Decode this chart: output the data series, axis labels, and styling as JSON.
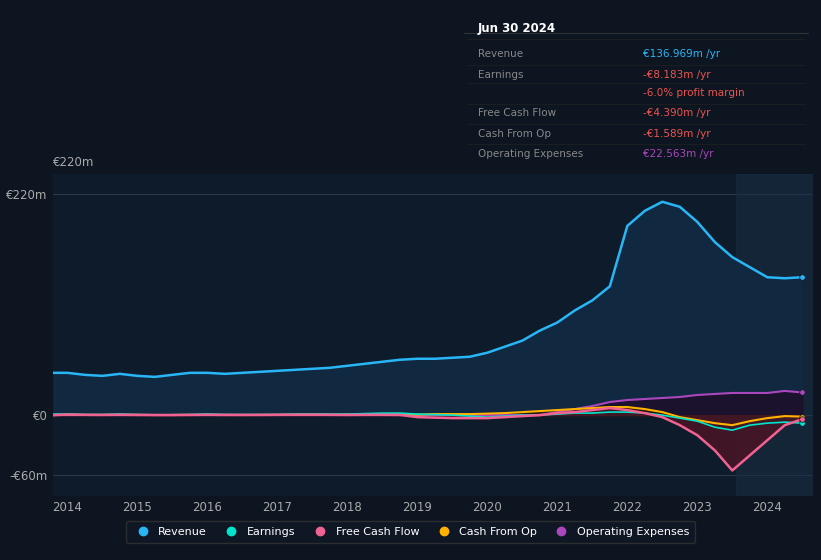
{
  "background_color": "#0c1520",
  "plot_bg_color": "#0d1b2a",
  "title_box": {
    "date": "Jun 30 2024",
    "rows": [
      {
        "label": "Revenue",
        "value": "€136.969m /yr",
        "label_color": "#888888",
        "value_color": "#29b6f6"
      },
      {
        "label": "Earnings",
        "value": "-€8.183m /yr",
        "label_color": "#888888",
        "value_color": "#ef5350"
      },
      {
        "label": "",
        "value": "-6.0% profit margin",
        "label_color": "#888888",
        "value_color": "#ef5350"
      },
      {
        "label": "Free Cash Flow",
        "value": "-€4.390m /yr",
        "label_color": "#888888",
        "value_color": "#ef5350"
      },
      {
        "label": "Cash From Op",
        "value": "-€1.589m /yr",
        "label_color": "#888888",
        "value_color": "#ef5350"
      },
      {
        "label": "Operating Expenses",
        "value": "€22.563m /yr",
        "label_color": "#888888",
        "value_color": "#ab47bc"
      }
    ]
  },
  "years": [
    2013.8,
    2014.0,
    2014.25,
    2014.5,
    2014.75,
    2015.0,
    2015.25,
    2015.5,
    2015.75,
    2016.0,
    2016.25,
    2016.5,
    2016.75,
    2017.0,
    2017.25,
    2017.5,
    2017.75,
    2018.0,
    2018.25,
    2018.5,
    2018.75,
    2019.0,
    2019.25,
    2019.5,
    2019.75,
    2020.0,
    2020.25,
    2020.5,
    2020.75,
    2021.0,
    2021.25,
    2021.5,
    2021.75,
    2022.0,
    2022.25,
    2022.5,
    2022.75,
    2023.0,
    2023.25,
    2023.5,
    2023.75,
    2024.0,
    2024.25,
    2024.5
  ],
  "revenue": [
    42,
    42,
    40,
    39,
    41,
    39,
    38,
    40,
    42,
    42,
    41,
    42,
    43,
    44,
    45,
    46,
    47,
    49,
    51,
    53,
    55,
    56,
    56,
    57,
    58,
    62,
    68,
    74,
    84,
    92,
    104,
    114,
    128,
    188,
    203,
    212,
    207,
    192,
    172,
    157,
    147,
    137,
    136,
    137
  ],
  "earnings": [
    1,
    1,
    0.5,
    0.5,
    1,
    0.5,
    0.2,
    0.3,
    0.5,
    1,
    0.5,
    0.5,
    0.5,
    0.5,
    1,
    1,
    1,
    1,
    1.5,
    2,
    2,
    1,
    0.5,
    0,
    -1,
    -2,
    -1,
    0,
    0,
    1,
    2,
    2,
    3,
    3,
    2,
    0,
    -3,
    -6,
    -12,
    -15,
    -10,
    -8,
    -7,
    -8
  ],
  "free_cash_flow": [
    0,
    0.5,
    0.3,
    0.2,
    0.3,
    0.2,
    0.1,
    0.1,
    0.2,
    0.3,
    0.2,
    0.2,
    0.2,
    0.3,
    0.4,
    0.4,
    0.3,
    0.2,
    0.3,
    0.3,
    0.2,
    -2,
    -2.5,
    -3,
    -3,
    -3,
    -2,
    -1,
    0,
    2,
    3,
    5,
    7,
    5,
    2,
    -2,
    -10,
    -20,
    -35,
    -55,
    -40,
    -25,
    -10,
    -4
  ],
  "cash_from_op": [
    0,
    0.5,
    0.2,
    0.2,
    0.3,
    0.2,
    0.1,
    0.1,
    0.2,
    0.3,
    0.2,
    0.1,
    0.2,
    0.3,
    0.3,
    0.4,
    0.3,
    0.4,
    0.5,
    0.5,
    0.5,
    0.5,
    1,
    1,
    1,
    1.5,
    2,
    3,
    4,
    5,
    6,
    7,
    8,
    8,
    6,
    3,
    -2,
    -5,
    -8,
    -10,
    -6,
    -3,
    -1,
    -1.5
  ],
  "op_expenses": [
    0,
    0,
    0,
    0,
    0,
    0,
    0,
    0,
    0,
    0,
    0,
    0,
    0,
    0,
    0,
    0,
    0,
    0,
    0,
    0,
    0,
    0,
    0,
    0,
    0,
    0,
    0,
    0,
    0,
    3,
    6,
    9,
    13,
    15,
    16,
    17,
    18,
    20,
    21,
    22,
    22,
    22,
    24,
    22.5
  ],
  "revenue_color": "#29b6f6",
  "revenue_fill": "#102840",
  "earnings_color": "#00e5cc",
  "earnings_fill": "#003322",
  "fcf_color": "#f06292",
  "fcf_fill": "#4a1525",
  "cashop_color": "#ffb300",
  "cashop_fill": "#2a1a00",
  "opex_color": "#ab47bc",
  "opex_fill": "#1e0f2a",
  "ylim": [
    -80,
    240
  ],
  "ytick_vals": [
    -60,
    0,
    220
  ],
  "ytick_labels": [
    "-€60m",
    "€0",
    "€220m"
  ],
  "xlim": [
    2013.8,
    2024.65
  ],
  "xticks": [
    2014,
    2015,
    2016,
    2017,
    2018,
    2019,
    2020,
    2021,
    2022,
    2023,
    2024
  ],
  "shade_start": 2023.55,
  "legend_items": [
    {
      "label": "Revenue",
      "color": "#29b6f6"
    },
    {
      "label": "Earnings",
      "color": "#00e5cc"
    },
    {
      "label": "Free Cash Flow",
      "color": "#f06292"
    },
    {
      "label": "Cash From Op",
      "color": "#ffb300"
    },
    {
      "label": "Operating Expenses",
      "color": "#ab47bc"
    }
  ]
}
